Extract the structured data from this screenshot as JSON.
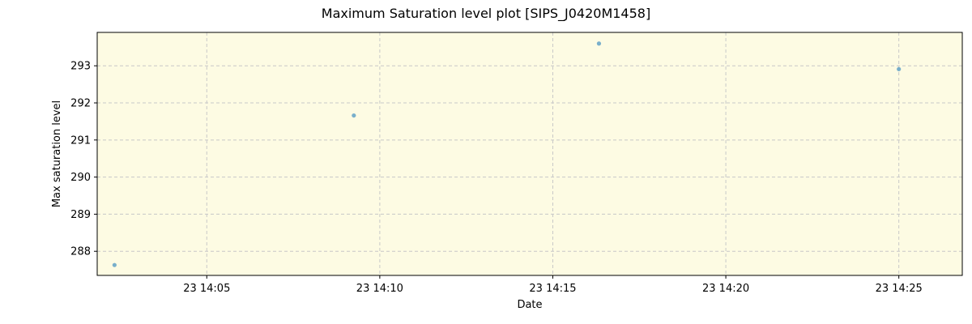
{
  "chart_data": {
    "type": "scatter",
    "title": "Maximum Saturation level plot [SIPS_J0420M1458]",
    "xlabel": "Date",
    "ylabel": "Max saturation level",
    "x_ticks": [
      "23 14:05",
      "23 14:10",
      "23 14:15",
      "23 14:20",
      "23 14:25"
    ],
    "x_tick_values": [
      "14:05:00",
      "14:10:00",
      "14:15:00",
      "14:20:00",
      "14:25:00"
    ],
    "y_ticks": [
      288,
      289,
      290,
      291,
      292,
      293
    ],
    "xlim": [
      "14:01:50",
      "14:26:50"
    ],
    "ylim": [
      287.35,
      293.9
    ],
    "grid": true,
    "background_color": "#fdfbe3",
    "point_color": "#6aa6c8",
    "points": [
      {
        "x": "14:02:20",
        "y": 287.63
      },
      {
        "x": "14:09:15",
        "y": 291.66
      },
      {
        "x": "14:16:20",
        "y": 293.6
      },
      {
        "x": "14:25:00",
        "y": 292.91
      }
    ]
  }
}
